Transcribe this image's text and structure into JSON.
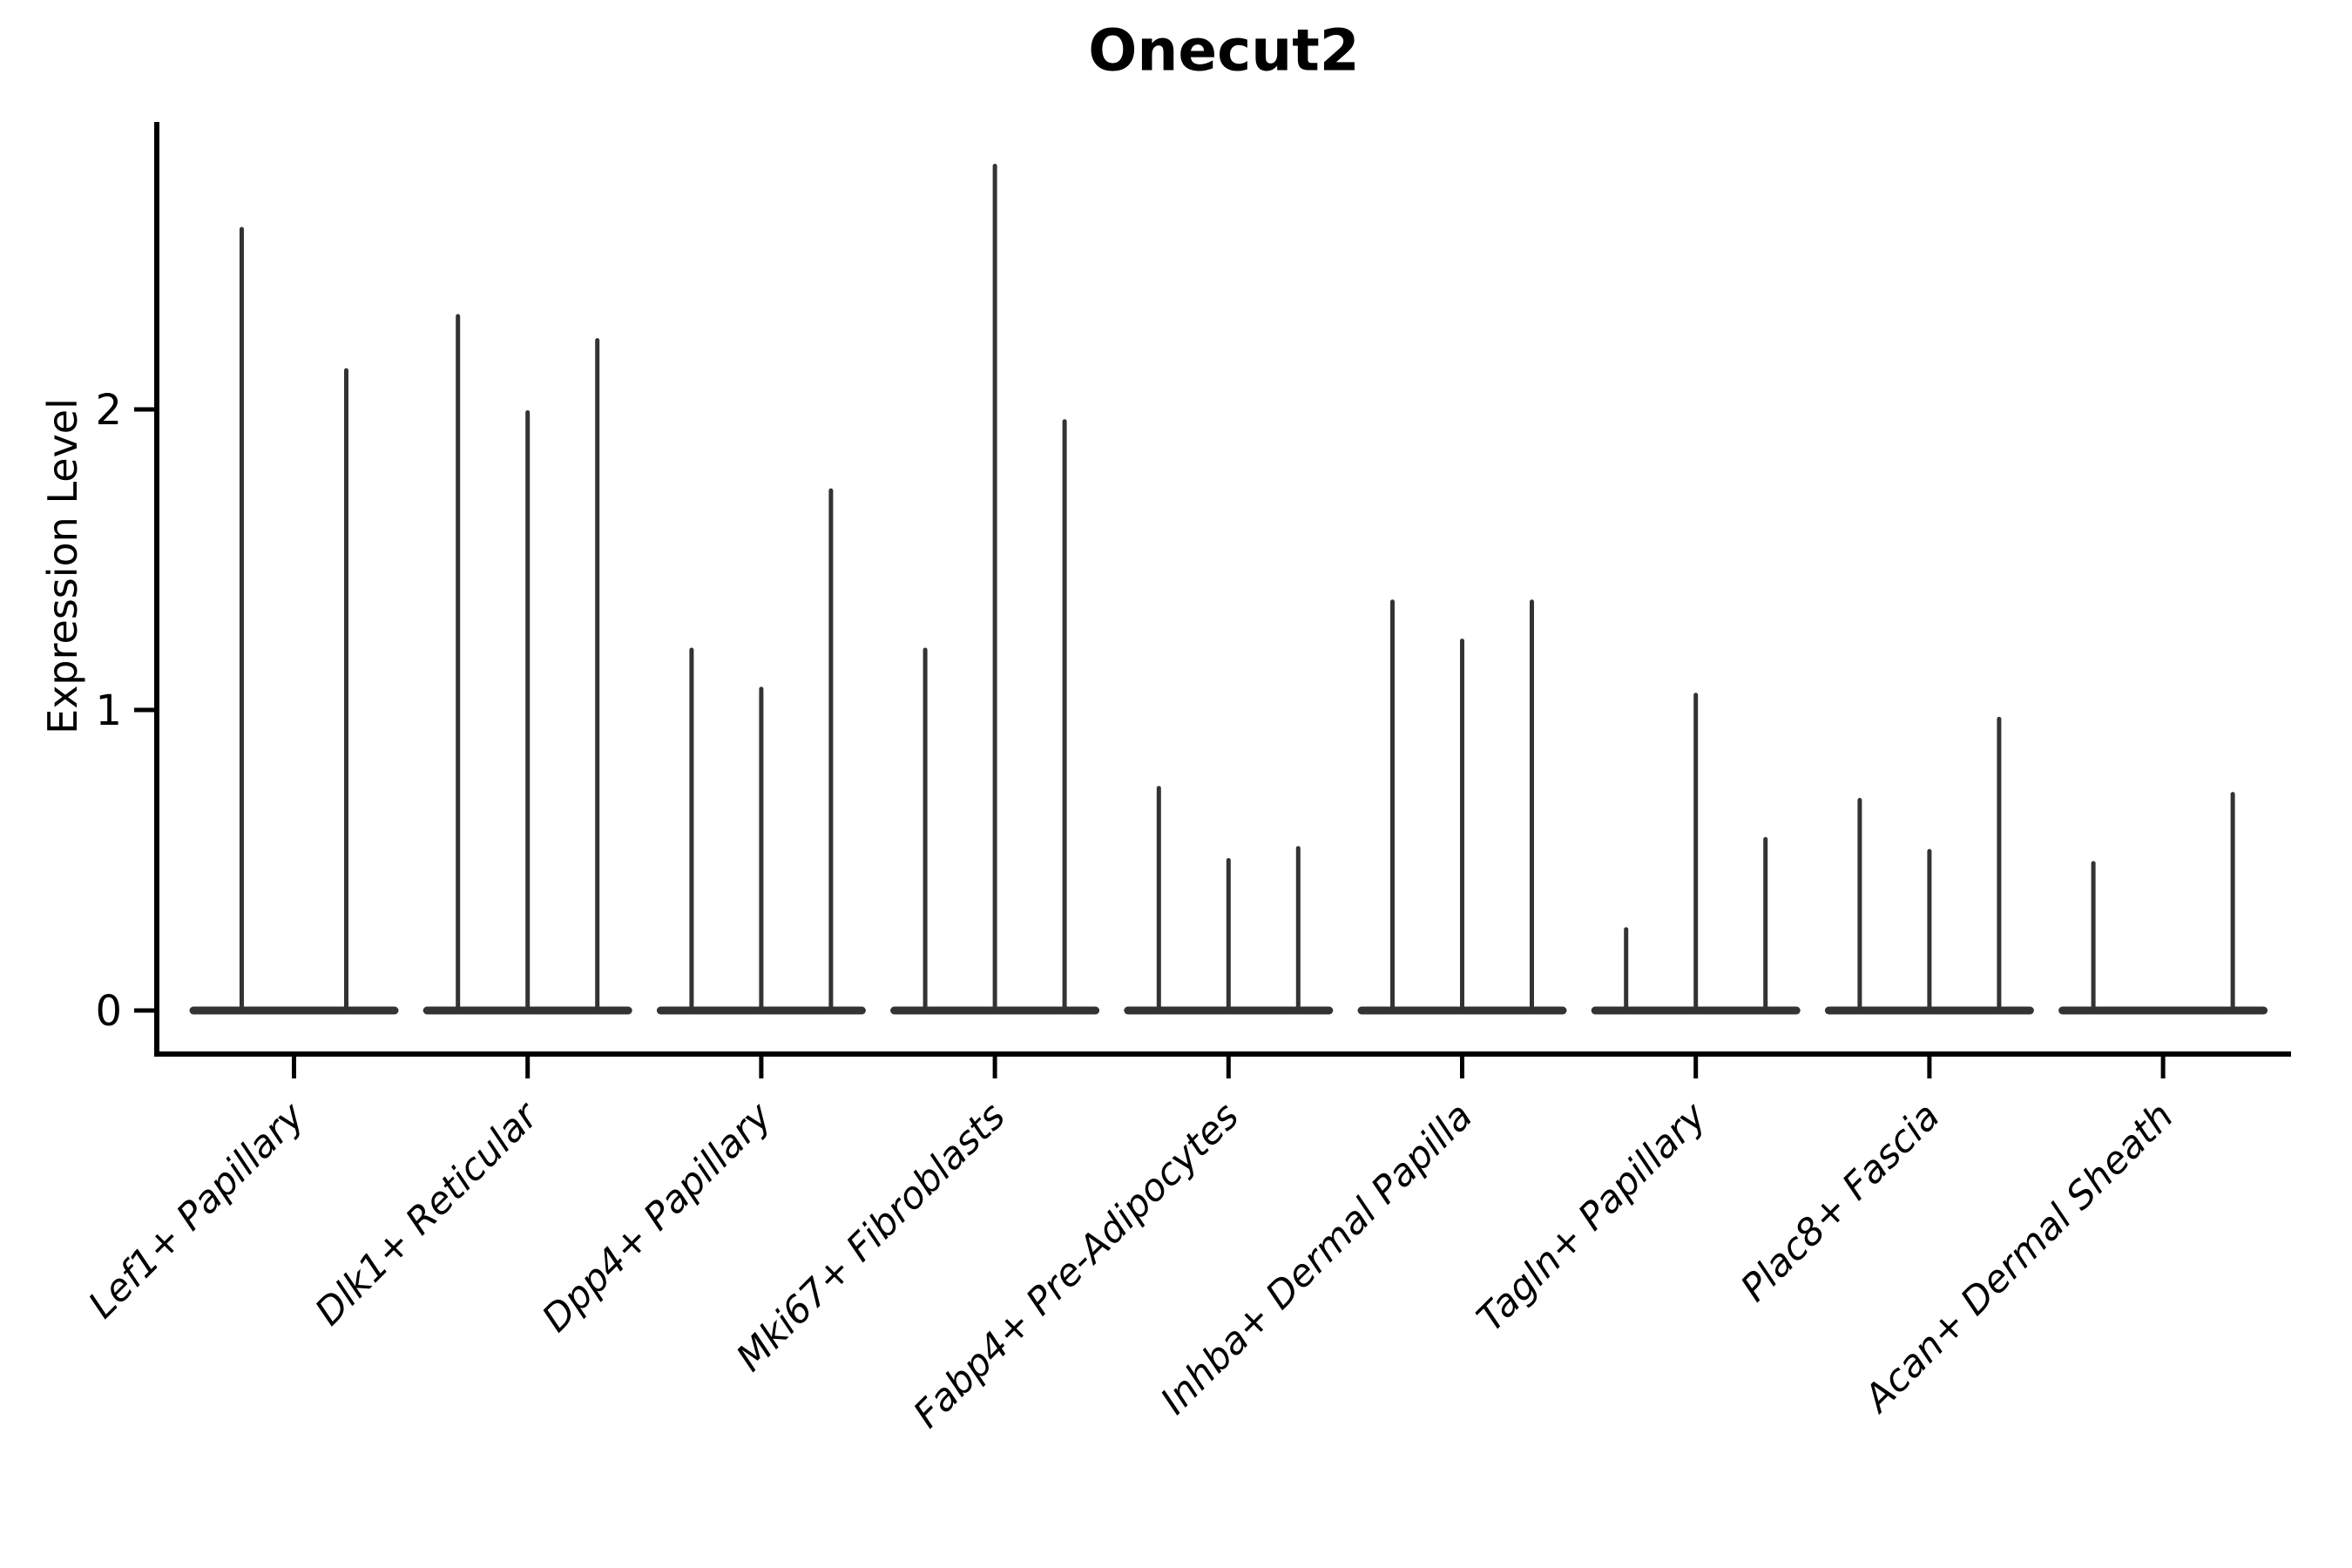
{
  "chart_data": {
    "type": "violin",
    "title": "Onecut2",
    "ylabel": "Expression Level",
    "xlabel": "",
    "yticks": [
      "0",
      "1",
      "2"
    ],
    "ytick_values": [
      0,
      1,
      2
    ],
    "ylim": [
      -0.15,
      2.96
    ],
    "grid": false,
    "legend": "none",
    "categories": [
      "Lef1+ Papillary",
      "Dlk1+ Reticular",
      "Dpp4+ Papillary",
      "Mki67+ Fibroblasts",
      "Fabp4+ Pre-Adipocytes",
      "Inhba+ Dermal Papilla",
      "Tagln+ Papillary",
      "Plac8+ Fascia",
      "Acan+ Dermal Sheath"
    ],
    "series": [
      {
        "category": "Lef1+ Papillary",
        "spike_maxima": [
          2.6,
          2.13
        ]
      },
      {
        "category": "Dlk1+ Reticular",
        "spike_maxima": [
          2.31,
          1.99,
          2.23
        ]
      },
      {
        "category": "Dpp4+ Papillary",
        "spike_maxima": [
          1.2,
          1.07,
          1.73
        ]
      },
      {
        "category": "Mki67+ Fibroblasts",
        "spike_maxima": [
          1.2,
          2.81,
          1.96
        ]
      },
      {
        "category": "Fabp4+ Pre-Adipocytes",
        "spike_maxima": [
          0.74,
          0.5,
          0.54
        ]
      },
      {
        "category": "Inhba+ Dermal Papilla",
        "spike_maxima": [
          1.36,
          1.23,
          1.36
        ]
      },
      {
        "category": "Tagln+ Papillary",
        "spike_maxima": [
          0.27,
          1.05,
          0.57
        ]
      },
      {
        "category": "Plac8+ Fascia",
        "spike_maxima": [
          0.7,
          0.53,
          0.97
        ]
      },
      {
        "category": "Acan+ Dermal Sheath",
        "spike_maxima": [
          0.49,
          0.0,
          0.72
        ]
      }
    ],
    "description": "Violin plot; each category shows 2-3 width-scaled violins collapsed to a flat base at 0 with a thin spike up to the maximum expression value."
  },
  "colors": {
    "background": "#ffffff",
    "violin": "#333333",
    "axis": "#000000",
    "text": "#000000"
  }
}
